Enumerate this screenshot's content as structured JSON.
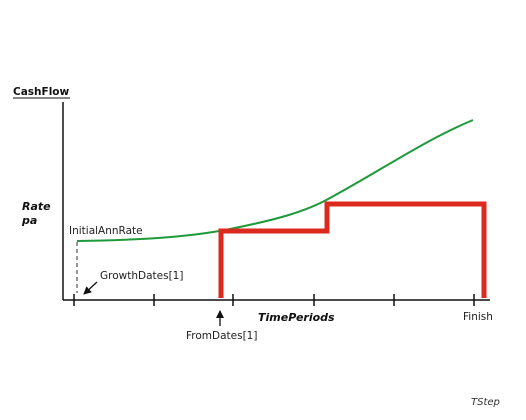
{
  "labels": {
    "y_axis_title": "CashFlow",
    "rate_line1": "Rate",
    "rate_line2": "pa",
    "initial_rate": "InitialAnnRate",
    "growth_dates": "GrowthDates[1]",
    "time_periods": "TimePeriods",
    "finish": "Finish",
    "from_dates": "FromDates[1]",
    "tstep": "TStep"
  },
  "colors": {
    "growth_curve": "#1e9a3c",
    "step_function": "#dd2a1f",
    "axis": "#111111",
    "dashed_marker": "#777777"
  },
  "icons": {
    "growth_pointer": "arrow-icon",
    "from_pointer": "arrow-up-icon"
  }
}
